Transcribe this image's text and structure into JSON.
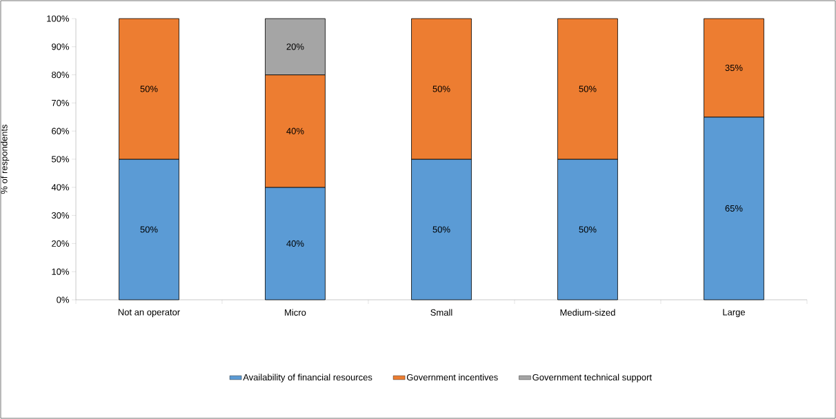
{
  "chart_data": {
    "type": "bar",
    "stacked": true,
    "ylabel": "% of respondents",
    "legend": "bottom",
    "categories": [
      "Not an operator",
      "Micro",
      "Small",
      "Medium-sized",
      "Large"
    ],
    "ylim": [
      0,
      100
    ],
    "yticks": [
      {
        "value": 0,
        "label": "0%"
      },
      {
        "value": 10,
        "label": "10%"
      },
      {
        "value": 20,
        "label": "20%"
      },
      {
        "value": 30,
        "label": "30%"
      },
      {
        "value": 40,
        "label": "40%"
      },
      {
        "value": 50,
        "label": "50%"
      },
      {
        "value": 60,
        "label": "60%"
      },
      {
        "value": 70,
        "label": "70%"
      },
      {
        "value": 80,
        "label": "80%"
      },
      {
        "value": 90,
        "label": "90%"
      },
      {
        "value": 100,
        "label": "100%"
      }
    ],
    "series": [
      {
        "name": "Availability of financial resources",
        "color": "#5b9bd5",
        "values": [
          50,
          40,
          50,
          50,
          65
        ],
        "value_labels": [
          "50%",
          "40%",
          "50%",
          "50%",
          "65%"
        ]
      },
      {
        "name": "Government incentives",
        "color": "#ed7d31",
        "values": [
          50,
          40,
          50,
          50,
          35
        ],
        "value_labels": [
          "50%",
          "40%",
          "50%",
          "50%",
          "35%"
        ]
      },
      {
        "name": "Government technical support",
        "color": "#a5a5a5",
        "values": [
          null,
          20,
          null,
          null,
          null
        ],
        "value_labels": [
          null,
          "20%",
          null,
          null,
          null
        ]
      }
    ]
  }
}
